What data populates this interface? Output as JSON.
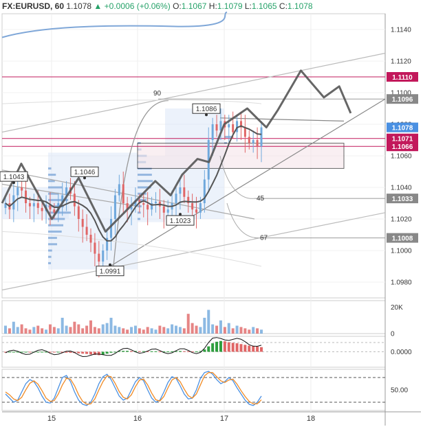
{
  "header": {
    "symbol": "FX:EURUSD, 60",
    "last": "1.1078",
    "change_arrow": "▲",
    "change": "+0.0006 (+0.06%)",
    "o_label": "O:",
    "o": "1.1067",
    "h_label": "H:",
    "h": "1.1079",
    "l_label": "L:",
    "l": "1.1065",
    "c_label": "C:",
    "c": "1.1078"
  },
  "colors": {
    "up": "#6fa8dc",
    "down": "#e06666",
    "resistance": "#c2185b",
    "level_badge": "#888888",
    "current_badge": "#4a90e2",
    "projection": "#555555"
  },
  "chart_data": [
    {
      "type": "candlestick",
      "panel": "price",
      "x_ticks": [
        "15",
        "16",
        "17",
        "18"
      ],
      "y_ticks": [
        "1.1140",
        "1.1120",
        "1.1100",
        "1.1080",
        "1.1060",
        "1.1040",
        "1.1020",
        "1.1000",
        "1.0980"
      ],
      "ylim": [
        1.097,
        1.115
      ],
      "axis_badges": [
        {
          "label": "1.1110",
          "value": 1.111,
          "style": "resistance"
        },
        {
          "label": "1.1096",
          "value": 1.1096,
          "style": "level"
        },
        {
          "label": "1.1078",
          "value": 1.1078,
          "style": "current"
        },
        {
          "label": "1.1071",
          "value": 1.1071,
          "style": "resistance"
        },
        {
          "label": "1.1066",
          "value": 1.1066,
          "style": "resistance"
        },
        {
          "label": "1.1033",
          "value": 1.1033,
          "style": "level"
        },
        {
          "label": "1.1008",
          "value": 1.1008,
          "style": "level"
        }
      ],
      "price_callouts": [
        {
          "label": "1.1043",
          "value": 1.1043
        },
        {
          "label": "1.1046",
          "value": 1.1046
        },
        {
          "label": "1.1086",
          "value": 1.1086
        },
        {
          "label": "1.1023",
          "value": 1.1023
        },
        {
          "label": "1.0991",
          "value": 1.0991
        }
      ],
      "fib_labels": [
        "90",
        "45",
        "67"
      ],
      "closes": [
        1.103,
        1.1026,
        1.1035,
        1.104,
        1.1038,
        1.103,
        1.1028,
        1.103,
        1.1027,
        1.1025,
        1.1029,
        1.1026,
        1.1024,
        1.103,
        1.1035,
        1.104,
        1.1036,
        1.1028,
        1.102,
        1.1015,
        1.101,
        1.1005,
        1.0998,
        1.0993,
        1.1,
        1.1008,
        1.102,
        1.1035,
        1.1042,
        1.103,
        1.1026,
        1.1028,
        1.1032,
        1.103,
        1.1029,
        1.1026,
        1.103,
        1.1031,
        1.1028,
        1.1024,
        1.1026,
        1.103,
        1.1036,
        1.104,
        1.1034,
        1.103,
        1.1026,
        1.1024,
        1.103,
        1.1045,
        1.107,
        1.108,
        1.1076,
        1.1082,
        1.1078,
        1.108,
        1.1075,
        1.1082,
        1.1078,
        1.1072,
        1.1068,
        1.107,
        1.1066,
        1.1078
      ],
      "projection_path": [
        {
          "t": 0.0,
          "v": 1.103
        },
        {
          "t": 0.05,
          "v": 1.1055
        },
        {
          "t": 0.13,
          "v": 1.102
        },
        {
          "t": 0.2,
          "v": 1.1046
        },
        {
          "t": 0.27,
          "v": 1.1012
        },
        {
          "t": 0.4,
          "v": 1.1044
        },
        {
          "t": 0.44,
          "v": 1.1035
        },
        {
          "t": 0.47,
          "v": 1.1048
        },
        {
          "t": 0.51,
          "v": 1.1058
        },
        {
          "t": 0.54,
          "v": 1.1056
        },
        {
          "t": 0.58,
          "v": 1.108
        },
        {
          "t": 0.64,
          "v": 1.109
        },
        {
          "t": 0.69,
          "v": 1.1078
        },
        {
          "t": 0.72,
          "v": 1.1089
        },
        {
          "t": 0.78,
          "v": 1.1114
        },
        {
          "t": 0.84,
          "v": 1.1097
        },
        {
          "t": 0.88,
          "v": 1.1104
        },
        {
          "t": 0.91,
          "v": 1.1087
        }
      ]
    },
    {
      "type": "bar",
      "panel": "volume",
      "y_ticks": [
        "20K",
        "0"
      ],
      "ylim": [
        0,
        25000
      ],
      "values": [
        6000,
        4000,
        9000,
        5000,
        7000,
        4000,
        3000,
        5000,
        6000,
        4000,
        3000,
        7000,
        5000,
        4000,
        12000,
        6000,
        5000,
        9000,
        7000,
        4000,
        6000,
        10000,
        5000,
        4000,
        7000,
        8000,
        12000,
        6000,
        5000,
        4000,
        3000,
        5000,
        6000,
        4000,
        3000,
        5000,
        4000,
        3000,
        6000,
        5000,
        4000,
        7000,
        6000,
        5000,
        4000,
        15000,
        8000,
        6000,
        5000,
        12000,
        18000,
        7000,
        6000,
        10000,
        5000,
        8000,
        4000,
        6000,
        5000,
        4000,
        3000,
        5000,
        4000,
        3000
      ]
    },
    {
      "type": "bar",
      "panel": "macd",
      "y_ticks": [
        "0.0000"
      ],
      "ylim": [
        -1,
        1
      ],
      "values": [
        -0.05,
        -0.04,
        -0.03,
        -0.02,
        -0.02,
        -0.02,
        -0.03,
        -0.02,
        -0.02,
        -0.01,
        -0.01,
        -0.02,
        -0.03,
        -0.03,
        -0.05,
        -0.06,
        -0.07,
        -0.08,
        -0.1,
        -0.12,
        -0.14,
        -0.17,
        -0.2,
        -0.22,
        -0.18,
        -0.12,
        -0.06,
        0.0,
        0.05,
        0.06,
        0.06,
        0.05,
        0.05,
        0.04,
        0.04,
        0.03,
        0.03,
        0.03,
        0.02,
        0.02,
        0.02,
        0.03,
        0.04,
        0.05,
        0.04,
        0.03,
        0.02,
        0.02,
        0.05,
        0.15,
        0.35,
        0.55,
        0.65,
        0.7,
        0.68,
        0.62,
        0.58,
        0.55,
        0.5,
        0.45,
        0.4,
        0.38,
        0.34,
        0.3
      ]
    },
    {
      "type": "line",
      "panel": "stochastic",
      "y_ticks": [
        "50.00"
      ],
      "ylim": [
        0,
        100
      ],
      "series": [
        {
          "values": [
            40,
            30,
            20,
            25,
            45,
            65,
            75,
            70,
            55,
            35,
            20,
            18,
            30,
            55,
            80,
            85,
            70,
            45,
            25,
            15,
            12,
            20,
            40,
            65,
            82,
            88,
            75,
            55,
            35,
            25,
            30,
            50,
            70,
            80,
            72,
            50,
            30,
            20,
            25,
            45,
            68,
            82,
            78,
            60,
            40,
            28,
            30,
            50,
            78,
            92,
            95,
            88,
            75,
            65,
            70,
            80,
            72,
            55,
            40,
            25,
            15,
            12,
            20,
            35
          ]
        },
        {
          "values": [
            45,
            38,
            28,
            24,
            32,
            50,
            66,
            72,
            64,
            48,
            30,
            22,
            24,
            40,
            62,
            78,
            76,
            60,
            38,
            22,
            15,
            16,
            28,
            50,
            70,
            84,
            82,
            66,
            46,
            32,
            28,
            38,
            58,
            74,
            76,
            62,
            42,
            26,
            23,
            34,
            55,
            74,
            80,
            70,
            52,
            36,
            30,
            40,
            62,
            84,
            92,
            92,
            82,
            72,
            68,
            74,
            76,
            64,
            48,
            34,
            22,
            16,
            16,
            26
          ]
        }
      ]
    }
  ]
}
